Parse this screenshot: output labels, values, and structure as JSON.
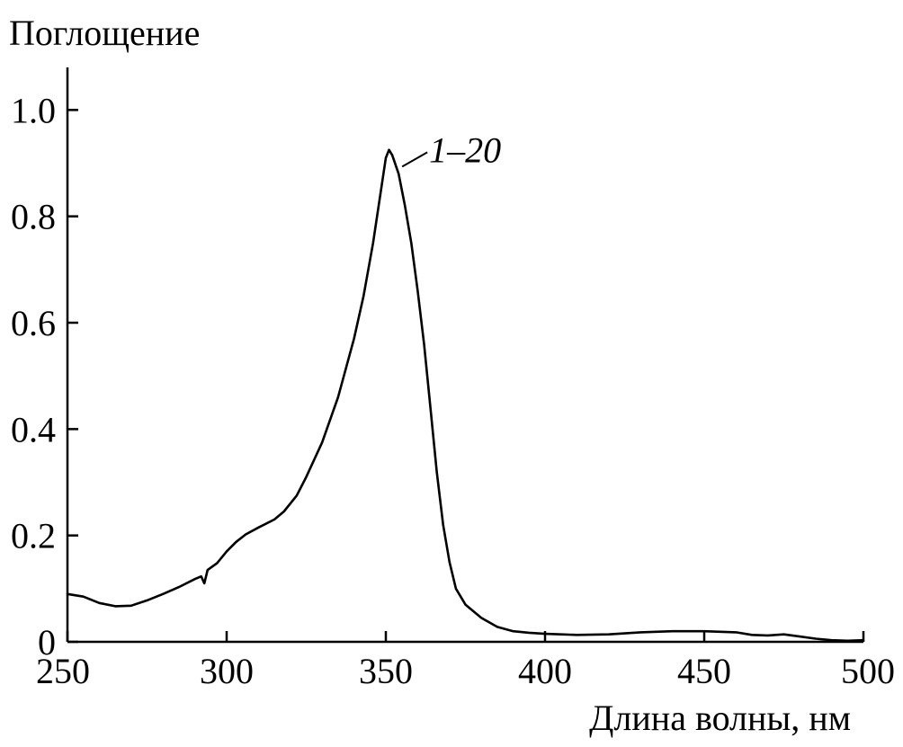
{
  "chart_data": {
    "type": "line",
    "title": "",
    "xlabel": "Длина волны, нм",
    "ylabel": "Поглощение",
    "xlim": [
      250,
      500
    ],
    "ylim": [
      0,
      1.08
    ],
    "grid": false,
    "x_ticks": [
      250,
      300,
      350,
      400,
      450,
      500
    ],
    "x_tick_labels": [
      "250",
      "300",
      "350",
      "400",
      "450",
      "500"
    ],
    "y_ticks": [
      0,
      0.2,
      0.4,
      0.6,
      0.8,
      1.0
    ],
    "y_tick_labels": [
      "0",
      "0.2",
      "0.4",
      "0.6",
      "0.8",
      "1.0"
    ],
    "annotation": "1–20",
    "annotation_target": {
      "x": 354,
      "y": 0.88
    },
    "series": [
      {
        "color": "#000000",
        "points": [
          [
            250,
            0.09
          ],
          [
            255,
            0.085
          ],
          [
            260,
            0.073
          ],
          [
            265,
            0.067
          ],
          [
            270,
            0.068
          ],
          [
            275,
            0.078
          ],
          [
            280,
            0.09
          ],
          [
            285,
            0.103
          ],
          [
            290,
            0.118
          ],
          [
            292,
            0.123
          ],
          [
            293,
            0.11
          ],
          [
            294,
            0.135
          ],
          [
            297,
            0.148
          ],
          [
            300,
            0.17
          ],
          [
            303,
            0.188
          ],
          [
            306,
            0.202
          ],
          [
            310,
            0.215
          ],
          [
            315,
            0.23
          ],
          [
            318,
            0.245
          ],
          [
            322,
            0.275
          ],
          [
            325,
            0.31
          ],
          [
            330,
            0.375
          ],
          [
            335,
            0.46
          ],
          [
            340,
            0.57
          ],
          [
            343,
            0.65
          ],
          [
            346,
            0.75
          ],
          [
            348,
            0.83
          ],
          [
            350,
            0.91
          ],
          [
            351,
            0.925
          ],
          [
            352,
            0.915
          ],
          [
            354,
            0.88
          ],
          [
            356,
            0.82
          ],
          [
            358,
            0.75
          ],
          [
            360,
            0.66
          ],
          [
            362,
            0.56
          ],
          [
            364,
            0.44
          ],
          [
            366,
            0.32
          ],
          [
            368,
            0.22
          ],
          [
            370,
            0.15
          ],
          [
            372,
            0.1
          ],
          [
            375,
            0.07
          ],
          [
            380,
            0.045
          ],
          [
            385,
            0.028
          ],
          [
            390,
            0.02
          ],
          [
            395,
            0.017
          ],
          [
            400,
            0.015
          ],
          [
            405,
            0.014
          ],
          [
            410,
            0.013
          ],
          [
            420,
            0.014
          ],
          [
            430,
            0.018
          ],
          [
            440,
            0.02
          ],
          [
            450,
            0.02
          ],
          [
            460,
            0.018
          ],
          [
            465,
            0.013
          ],
          [
            470,
            0.012
          ],
          [
            475,
            0.014
          ],
          [
            480,
            0.01
          ],
          [
            485,
            0.006
          ],
          [
            490,
            0.003
          ],
          [
            495,
            0.002
          ],
          [
            500,
            0.003
          ]
        ]
      }
    ]
  }
}
